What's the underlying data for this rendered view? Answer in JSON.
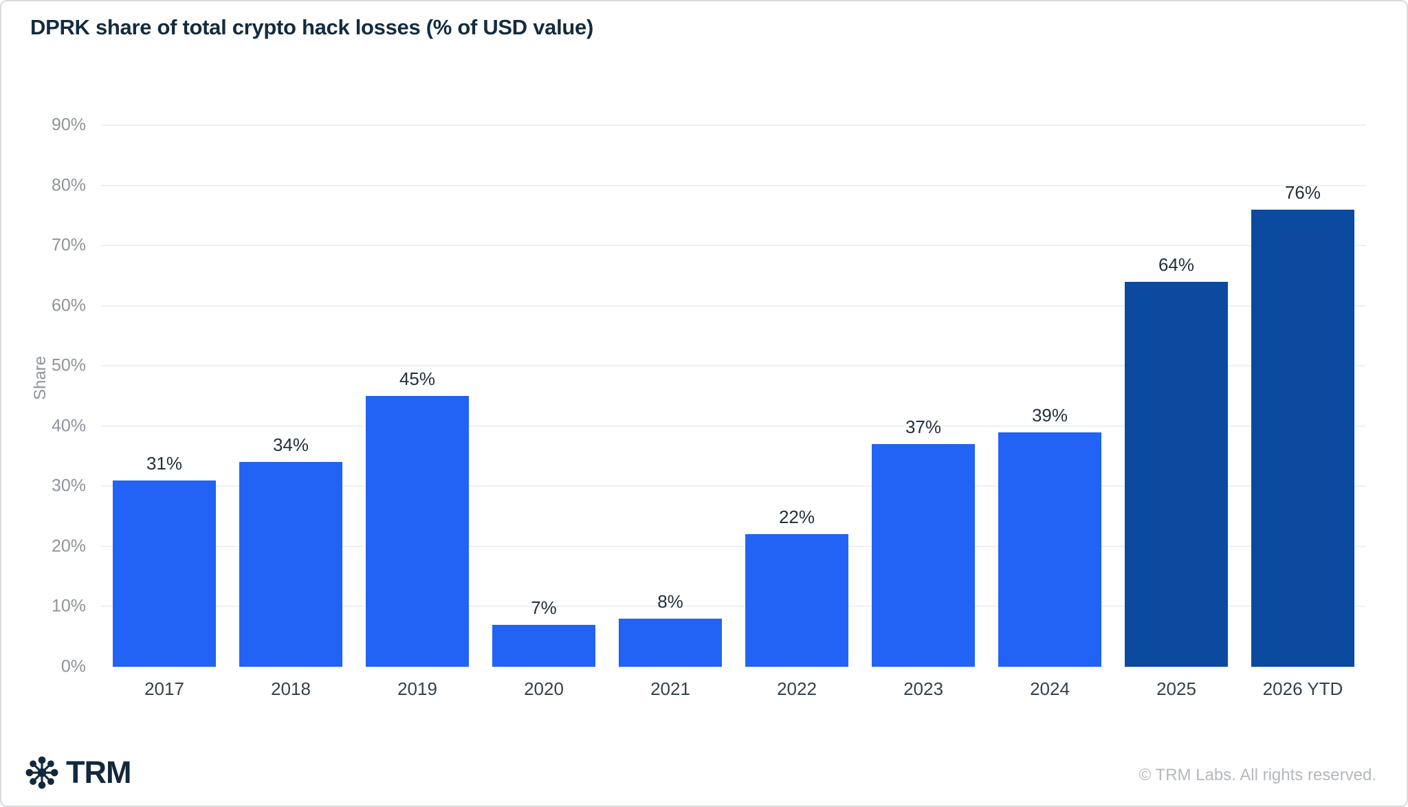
{
  "page": {
    "title": "DPRK share of total crypto hack losses (% of USD value)"
  },
  "chart_data": {
    "type": "bar",
    "title": "DPRK share of total crypto hack losses (% of USD value)",
    "categories": [
      "2017",
      "2018",
      "2019",
      "2020",
      "2021",
      "2022",
      "2023",
      "2024",
      "2025",
      "2026 YTD"
    ],
    "values": [
      31,
      34,
      45,
      7,
      8,
      22,
      37,
      39,
      64,
      76
    ],
    "data_labels": [
      "31%",
      "34%",
      "45%",
      "7%",
      "8%",
      "22%",
      "37%",
      "39%",
      "64%",
      "76%"
    ],
    "bar_colors": [
      "#2262F5",
      "#2262F5",
      "#2262F5",
      "#2262F5",
      "#2262F5",
      "#2262F5",
      "#2262F5",
      "#2262F5",
      "#0B4A9E",
      "#0B4A9E"
    ],
    "xlabel": "",
    "ylabel": "Share",
    "ylim": [
      0,
      90
    ],
    "ytick_step": 10,
    "ytick_labels": [
      "0%",
      "10%",
      "20%",
      "30%",
      "40%",
      "50%",
      "60%",
      "70%",
      "80%",
      "90%"
    ],
    "grid": "horizontal",
    "legend": "none"
  },
  "colors": {
    "bar_primary": "#2262F5",
    "bar_highlight": "#0B4A9E",
    "title_text": "#132B3F",
    "axis_tick_text": "#8D9399",
    "x_label_text": "#33414E",
    "data_label_text": "#22303E",
    "gridline": "#EEF0F2",
    "card_border": "#D9DBDE",
    "copyright_text": "#B4B8BD",
    "brand_text": "#13283C"
  },
  "footer": {
    "brand": "TRM",
    "logo_icon": "trm-asterisk-icon",
    "copyright": "© TRM Labs. All rights reserved."
  }
}
